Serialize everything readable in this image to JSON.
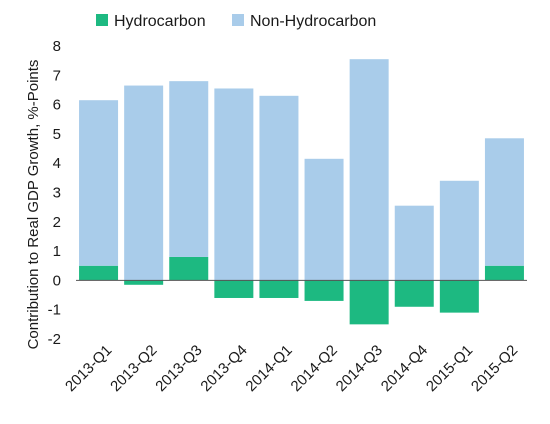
{
  "chart_data": {
    "type": "bar",
    "stacked": true,
    "categories": [
      "2013-Q1",
      "2013-Q2",
      "2013-Q3",
      "2013-Q4",
      "2014-Q1",
      "2014-Q2",
      "2014-Q3",
      "2014-Q4",
      "2015-Q1",
      "2015-Q2"
    ],
    "series": [
      {
        "name": "Hydrocarbon",
        "color": "#1db981",
        "values": [
          0.5,
          -0.15,
          0.8,
          -0.6,
          -0.6,
          -0.7,
          -1.5,
          -0.9,
          -1.1,
          0.5
        ]
      },
      {
        "name": "Non-Hydrocarbon",
        "color": "#a9ccea",
        "values": [
          5.65,
          6.65,
          6.0,
          6.55,
          6.3,
          4.15,
          7.55,
          2.55,
          3.4,
          4.35
        ]
      }
    ],
    "ylabel": "Contribution to Real GDP Growth, %-Points",
    "ylim": [
      -2,
      8
    ],
    "yticks": [
      "-2",
      "-1",
      "0",
      "1",
      "2",
      "3",
      "4",
      "5",
      "6",
      "7",
      "8"
    ],
    "legend_position": "top",
    "grid": false
  }
}
